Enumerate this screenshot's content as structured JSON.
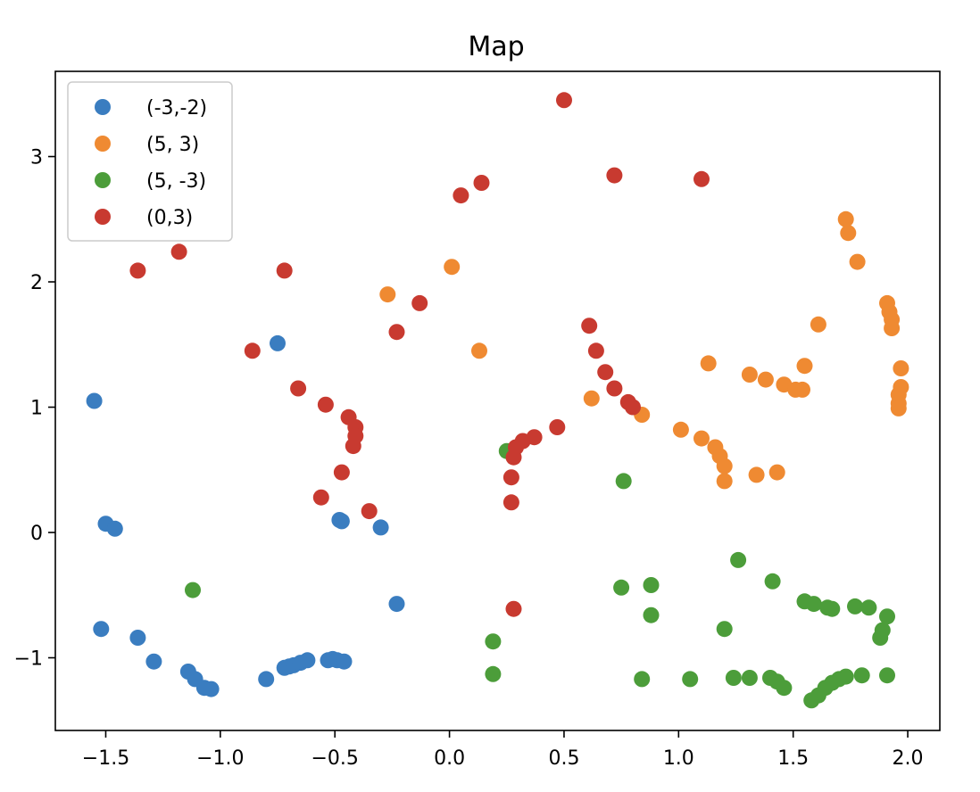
{
  "chart_data": {
    "type": "scatter",
    "title": "Map",
    "xlabel": "",
    "ylabel": "",
    "xlim": [
      -1.72,
      2.14
    ],
    "ylim": [
      -1.58,
      3.68
    ],
    "x_ticks": [
      -1.5,
      -1.0,
      -0.5,
      0.0,
      0.5,
      1.0,
      1.5,
      2.0
    ],
    "x_tick_labels": [
      "−1.5",
      "−1.0",
      "−0.5",
      "0.0",
      "0.5",
      "1.0",
      "1.5",
      "2.0"
    ],
    "y_ticks": [
      -1,
      0,
      1,
      2,
      3
    ],
    "y_tick_labels": [
      "−1",
      "0",
      "1",
      "2",
      "3"
    ],
    "grid": false,
    "legend_position": "top-left",
    "series": [
      {
        "name": "(-3,-2)",
        "color": "#3a7dc0",
        "points": [
          [
            -1.55,
            1.05
          ],
          [
            -1.5,
            0.07
          ],
          [
            -1.46,
            0.03
          ],
          [
            -1.52,
            -0.77
          ],
          [
            -1.36,
            -0.84
          ],
          [
            -1.29,
            -1.03
          ],
          [
            -1.14,
            -1.11
          ],
          [
            -1.11,
            -1.17
          ],
          [
            -1.07,
            -1.24
          ],
          [
            -1.04,
            -1.25
          ],
          [
            -0.8,
            -1.17
          ],
          [
            -0.72,
            -1.08
          ],
          [
            -0.7,
            -1.07
          ],
          [
            -0.68,
            -1.06
          ],
          [
            -0.65,
            -1.04
          ],
          [
            -0.62,
            -1.02
          ],
          [
            -0.53,
            -1.02
          ],
          [
            -0.51,
            -1.01
          ],
          [
            -0.49,
            -1.02
          ],
          [
            -0.46,
            -1.03
          ],
          [
            -0.75,
            1.51
          ],
          [
            -0.48,
            0.1
          ],
          [
            -0.47,
            0.09
          ],
          [
            -0.3,
            0.04
          ],
          [
            -0.23,
            -0.57
          ]
        ]
      },
      {
        "name": "(5, 3)",
        "color": "#ef8a32",
        "points": [
          [
            -0.27,
            1.9
          ],
          [
            0.01,
            2.12
          ],
          [
            0.13,
            1.45
          ],
          [
            0.62,
            1.07
          ],
          [
            0.84,
            0.94
          ],
          [
            1.01,
            0.82
          ],
          [
            1.1,
            0.75
          ],
          [
            1.16,
            0.68
          ],
          [
            1.18,
            0.61
          ],
          [
            1.2,
            0.53
          ],
          [
            1.2,
            0.41
          ],
          [
            1.34,
            0.46
          ],
          [
            1.43,
            0.48
          ],
          [
            1.13,
            1.35
          ],
          [
            1.31,
            1.26
          ],
          [
            1.38,
            1.22
          ],
          [
            1.46,
            1.18
          ],
          [
            1.51,
            1.14
          ],
          [
            1.54,
            1.14
          ],
          [
            1.55,
            1.33
          ],
          [
            1.61,
            1.66
          ],
          [
            1.73,
            2.5
          ],
          [
            1.74,
            2.39
          ],
          [
            1.78,
            2.16
          ],
          [
            1.91,
            1.83
          ],
          [
            1.92,
            1.76
          ],
          [
            1.93,
            1.7
          ],
          [
            1.93,
            1.63
          ],
          [
            1.97,
            1.31
          ],
          [
            1.97,
            1.16
          ],
          [
            1.96,
            1.1
          ],
          [
            1.96,
            1.03
          ],
          [
            1.96,
            0.99
          ]
        ]
      },
      {
        "name": "(5, -3)",
        "color": "#4c9d3a",
        "points": [
          [
            -1.12,
            -0.46
          ],
          [
            0.25,
            0.65
          ],
          [
            0.76,
            0.41
          ],
          [
            0.19,
            -0.87
          ],
          [
            0.19,
            -1.13
          ],
          [
            0.75,
            -0.44
          ],
          [
            0.88,
            -0.42
          ],
          [
            0.88,
            -0.66
          ],
          [
            0.84,
            -1.17
          ],
          [
            1.05,
            -1.17
          ],
          [
            1.2,
            -0.77
          ],
          [
            1.26,
            -0.22
          ],
          [
            1.24,
            -1.16
          ],
          [
            1.31,
            -1.16
          ],
          [
            1.4,
            -1.16
          ],
          [
            1.43,
            -1.19
          ],
          [
            1.46,
            -1.24
          ],
          [
            1.41,
            -0.39
          ],
          [
            1.55,
            -0.55
          ],
          [
            1.59,
            -0.57
          ],
          [
            1.65,
            -0.6
          ],
          [
            1.67,
            -0.61
          ],
          [
            1.58,
            -1.34
          ],
          [
            1.61,
            -1.3
          ],
          [
            1.64,
            -1.24
          ],
          [
            1.67,
            -1.2
          ],
          [
            1.7,
            -1.17
          ],
          [
            1.73,
            -1.15
          ],
          [
            1.8,
            -1.14
          ],
          [
            1.77,
            -0.59
          ],
          [
            1.83,
            -0.6
          ],
          [
            1.88,
            -0.84
          ],
          [
            1.89,
            -0.78
          ],
          [
            1.91,
            -0.67
          ],
          [
            1.91,
            -1.14
          ]
        ]
      },
      {
        "name": "(0,3)",
        "color": "#c83a30",
        "points": [
          [
            -1.36,
            2.09
          ],
          [
            -1.18,
            2.24
          ],
          [
            -0.72,
            2.09
          ],
          [
            -0.86,
            1.45
          ],
          [
            -0.66,
            1.15
          ],
          [
            -0.54,
            1.02
          ],
          [
            -0.44,
            0.92
          ],
          [
            -0.41,
            0.84
          ],
          [
            -0.41,
            0.77
          ],
          [
            -0.42,
            0.69
          ],
          [
            -0.47,
            0.48
          ],
          [
            -0.56,
            0.28
          ],
          [
            -0.35,
            0.17
          ],
          [
            -0.13,
            1.83
          ],
          [
            -0.23,
            1.6
          ],
          [
            0.05,
            2.69
          ],
          [
            0.14,
            2.79
          ],
          [
            0.5,
            3.45
          ],
          [
            0.72,
            2.85
          ],
          [
            1.1,
            2.82
          ],
          [
            0.61,
            1.65
          ],
          [
            0.64,
            1.45
          ],
          [
            0.68,
            1.28
          ],
          [
            0.72,
            1.15
          ],
          [
            0.78,
            1.04
          ],
          [
            0.8,
            1.0
          ],
          [
            0.47,
            0.84
          ],
          [
            0.37,
            0.76
          ],
          [
            0.32,
            0.73
          ],
          [
            0.29,
            0.68
          ],
          [
            0.28,
            0.6
          ],
          [
            0.27,
            0.44
          ],
          [
            0.27,
            0.24
          ],
          [
            0.28,
            -0.61
          ]
        ]
      }
    ]
  }
}
